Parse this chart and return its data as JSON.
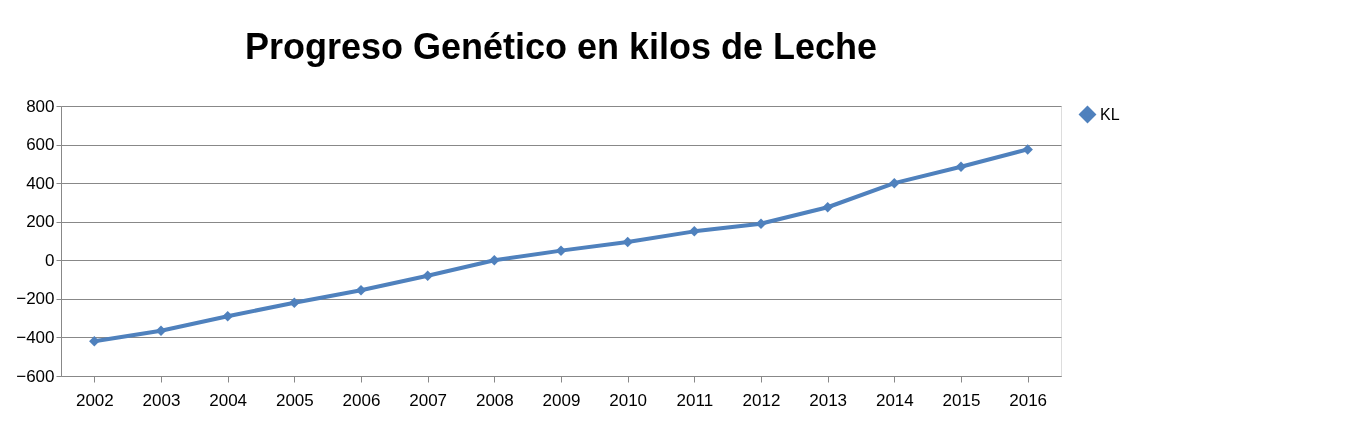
{
  "chart_data": {
    "type": "line",
    "title": "Progreso Genético en kilos de Leche",
    "categories": [
      "2002",
      "2003",
      "2004",
      "2005",
      "2006",
      "2007",
      "2008",
      "2009",
      "2010",
      "2011",
      "2012",
      "2013",
      "2014",
      "2015",
      "2016"
    ],
    "series": [
      {
        "name": "KL",
        "color": "#4f81bd",
        "values": [
          -420,
          -365,
          -290,
          -220,
          -155,
          -80,
          0,
          50,
          95,
          150,
          190,
          275,
          400,
          485,
          575
        ]
      }
    ],
    "ylim": [
      -600,
      800
    ],
    "yticks": [
      -600,
      -400,
      -200,
      0,
      200,
      400,
      600,
      800
    ],
    "grid": "y",
    "legend": "right",
    "marker": "diamond",
    "line_style": "solid"
  }
}
